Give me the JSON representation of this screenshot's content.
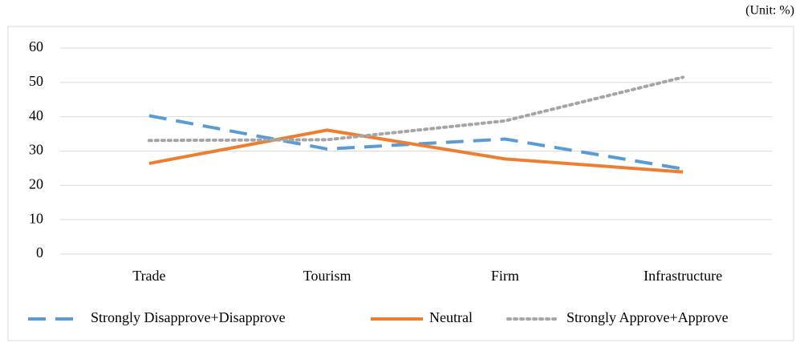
{
  "chart_data": {
    "type": "line",
    "annotation": "(Unit: %)",
    "categories": [
      "Trade",
      "Tourism",
      "Firm",
      "Infrastructure"
    ],
    "series": [
      {
        "name": "Strongly Disapprove+Disapprove",
        "color": "#5b9bd5",
        "style": "dashed",
        "values": [
          40.3,
          30.6,
          33.5,
          24.8
        ]
      },
      {
        "name": "Neutral",
        "color": "#ed7d31",
        "style": "solid",
        "values": [
          26.4,
          36.1,
          27.7,
          23.9
        ]
      },
      {
        "name": "Strongly Approve+Approve",
        "color": "#a5a5a5",
        "style": "dotted",
        "values": [
          33.1,
          33.3,
          38.8,
          51.5
        ]
      }
    ],
    "ylim": [
      0,
      60
    ],
    "yticks": [
      0,
      10,
      20,
      30,
      40,
      50,
      60
    ],
    "grid": true,
    "legend": "bottom"
  }
}
